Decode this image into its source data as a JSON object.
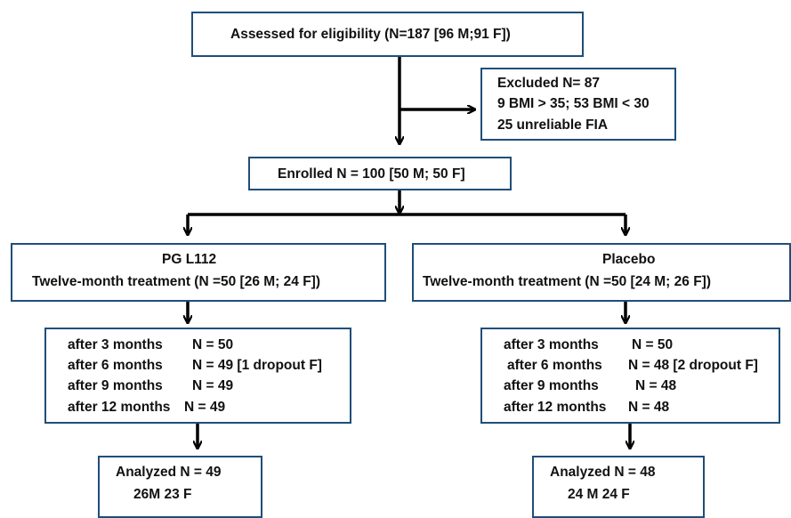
{
  "eligibility": {
    "text": "Assessed for eligibility (N=187 [96 M;91 F])"
  },
  "excluded": {
    "title": "Excluded N= 87",
    "line2": "9 BMI > 35; 53 BMI < 30",
    "line3": "25 unreliable FIA"
  },
  "enrolled": {
    "text": "Enrolled N = 100 [50 M; 50 F]"
  },
  "arms": {
    "left": {
      "name": "PG L112",
      "treatment": "Twelve-month treatment  (N =50 [26 M; 24 F])",
      "followup": [
        {
          "period": "after 3 months",
          "result": "N = 50"
        },
        {
          "period": "after 6 months",
          "result": "N = 49 [1 dropout F]"
        },
        {
          "period": "after 9 months",
          "result": "N = 49"
        },
        {
          "period": "after 12 months",
          "result": "N = 49"
        }
      ],
      "analyzed": "Analyzed  N = 49",
      "analyzed_split": "26M  23 F"
    },
    "right": {
      "name": "Placebo",
      "treatment": "Twelve-month  treatment  (N =50 [24 M; 26 F])",
      "followup": [
        {
          "period": "after 3 months",
          "result": "N = 50"
        },
        {
          "period": "after 6 months",
          "result": "N = 48 [2 dropout F]"
        },
        {
          "period": "after  9 months",
          "result": "N = 48"
        },
        {
          "period": "after 12 months",
          "result": "N = 48"
        }
      ],
      "analyzed": "Analyzed  N = 48",
      "analyzed_split": "24 M  24 F"
    }
  },
  "colors": {
    "box_border": "#1f4e79",
    "connector": "#000000",
    "text": "#111111"
  }
}
